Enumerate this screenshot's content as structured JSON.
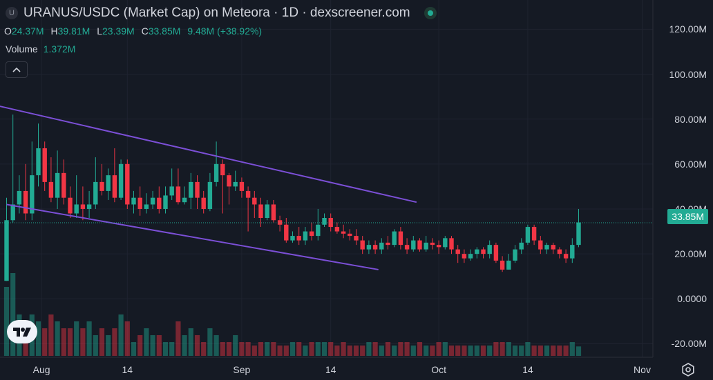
{
  "header": {
    "symbol_badge": "U",
    "title": "URANUS/USDC (Market Cap) on Meteora · 1D · dexscreener.com"
  },
  "ohlc": {
    "o_label": "O",
    "o_value": "24.37M",
    "h_label": "H",
    "h_value": "39.81M",
    "l_label": "L",
    "l_value": "23.39M",
    "c_label": "C",
    "c_value": "33.85M",
    "change": "9.48M (+38.92%)"
  },
  "volume": {
    "label": "Volume",
    "value": "1.372M"
  },
  "current_price_label": "33.85M",
  "icons": {
    "collapse": "chevron-up-icon",
    "logo": "tradingview-logo",
    "settings": "gear-icon",
    "live": "live-status-icon"
  },
  "colors": {
    "background": "#151a24",
    "up": "#22ab94",
    "down": "#f23645",
    "trendline": "#7b4fd6"
  },
  "chart_data": {
    "type": "candlestick",
    "interval": "1D",
    "y_ticks": [
      "120.00M",
      "100.00M",
      "80.00M",
      "60.00M",
      "40.00M",
      "20.00M",
      "0.0000",
      "-20.00M"
    ],
    "y_tick_values": [
      120,
      100,
      80,
      60,
      40,
      20,
      0,
      -20
    ],
    "x_ticks": [
      "Aug",
      "14",
      "Sep",
      "14",
      "Oct",
      "14",
      "Nov"
    ],
    "ylim": [
      -26,
      133
    ],
    "unit": "M",
    "candles_ohlc": [
      [
        8,
        35,
        45,
        8
      ],
      [
        35,
        42,
        82,
        34
      ],
      [
        42,
        48,
        55,
        38
      ],
      [
        48,
        38,
        60,
        35
      ],
      [
        38,
        55,
        70,
        35
      ],
      [
        55,
        67,
        78,
        50
      ],
      [
        67,
        52,
        70,
        48
      ],
      [
        52,
        45,
        63,
        43
      ],
      [
        45,
        56,
        66,
        40
      ],
      [
        56,
        45,
        62,
        42
      ],
      [
        45,
        38,
        50,
        36
      ],
      [
        38,
        42,
        55,
        36
      ],
      [
        42,
        40,
        50,
        35
      ],
      [
        40,
        42,
        48,
        36
      ],
      [
        42,
        52,
        63,
        40
      ],
      [
        52,
        48,
        60,
        46
      ],
      [
        48,
        55,
        58,
        44
      ],
      [
        55,
        45,
        67,
        43
      ],
      [
        45,
        60,
        62,
        44
      ],
      [
        60,
        42,
        62,
        40
      ],
      [
        42,
        45,
        48,
        38
      ],
      [
        45,
        40,
        50,
        37
      ],
      [
        40,
        42,
        47,
        38
      ],
      [
        42,
        45,
        48,
        40
      ],
      [
        45,
        40,
        50,
        38
      ],
      [
        40,
        46,
        50,
        38
      ],
      [
        46,
        50,
        58,
        44
      ],
      [
        50,
        43,
        58,
        42
      ],
      [
        43,
        45,
        50,
        42
      ],
      [
        45,
        52,
        56,
        40
      ],
      [
        52,
        45,
        55,
        40
      ],
      [
        45,
        40,
        48,
        38
      ],
      [
        40,
        52,
        56,
        39
      ],
      [
        52,
        60,
        70,
        50
      ],
      [
        60,
        55,
        62,
        38
      ],
      [
        55,
        50,
        56,
        42
      ],
      [
        50,
        52,
        57,
        48
      ],
      [
        52,
        48,
        54,
        45
      ],
      [
        48,
        45,
        50,
        30
      ],
      [
        45,
        42,
        48,
        36
      ],
      [
        42,
        36,
        45,
        32
      ],
      [
        36,
        42,
        44,
        35
      ],
      [
        42,
        35,
        44,
        34
      ],
      [
        35,
        33,
        37,
        30
      ],
      [
        33,
        26,
        36,
        25
      ],
      [
        26,
        28,
        30,
        25
      ],
      [
        28,
        26,
        32,
        24
      ],
      [
        26,
        30,
        32,
        24
      ],
      [
        30,
        28,
        34,
        26
      ],
      [
        28,
        33,
        40,
        26
      ],
      [
        33,
        36,
        38,
        32
      ],
      [
        36,
        32,
        38,
        30
      ],
      [
        32,
        30,
        34,
        29
      ],
      [
        30,
        29,
        33,
        27
      ],
      [
        29,
        28,
        31,
        26
      ],
      [
        28,
        26,
        31,
        24
      ],
      [
        26,
        22,
        28,
        20
      ],
      [
        22,
        24,
        26,
        20
      ],
      [
        24,
        22,
        26,
        20
      ],
      [
        22,
        25,
        27,
        20
      ],
      [
        25,
        24,
        28,
        22
      ],
      [
        24,
        30,
        31,
        23
      ],
      [
        30,
        24,
        32,
        22
      ],
      [
        24,
        22,
        27,
        20
      ],
      [
        22,
        26,
        28,
        21
      ],
      [
        26,
        22,
        27,
        21
      ],
      [
        22,
        25,
        28,
        21
      ],
      [
        25,
        24,
        27,
        22
      ],
      [
        24,
        23,
        26,
        20
      ],
      [
        23,
        27,
        28,
        22
      ],
      [
        27,
        22,
        28,
        20
      ],
      [
        22,
        20,
        24,
        16
      ],
      [
        20,
        18,
        22,
        16
      ],
      [
        18,
        20,
        22,
        17
      ],
      [
        20,
        22,
        23,
        18
      ],
      [
        22,
        20,
        23,
        18
      ],
      [
        20,
        24,
        26,
        18
      ],
      [
        24,
        17,
        25,
        16
      ],
      [
        17,
        13,
        19,
        12
      ],
      [
        13,
        17,
        20,
        13
      ],
      [
        17,
        22,
        24,
        16
      ],
      [
        22,
        25,
        27,
        20
      ],
      [
        25,
        32,
        33,
        24
      ],
      [
        32,
        26,
        33,
        24
      ],
      [
        26,
        22,
        28,
        20
      ],
      [
        22,
        24,
        25,
        20
      ],
      [
        24,
        22,
        25,
        20
      ],
      [
        22,
        20,
        23,
        18
      ],
      [
        20,
        18,
        22,
        16
      ],
      [
        18,
        24,
        27,
        16
      ],
      [
        24,
        34,
        40,
        23
      ]
    ],
    "volumes": [
      10,
      12,
      6,
      5,
      6,
      5,
      4,
      6,
      5,
      4,
      4,
      5,
      4,
      5,
      3,
      4,
      3,
      4,
      6,
      5,
      2,
      3,
      4,
      3,
      3,
      2,
      2,
      5,
      3,
      4,
      3,
      2,
      4,
      3,
      2,
      2,
      3,
      2,
      2,
      1.5,
      2,
      2,
      2,
      1.5,
      1.5,
      2,
      2,
      1.5,
      2,
      2,
      2,
      2,
      1.5,
      2,
      1.5,
      1.5,
      1.5,
      2,
      2,
      1.5,
      2,
      1.5,
      2,
      2,
      1.5,
      2,
      1.5,
      1.5,
      2,
      2,
      1.5,
      1.5,
      1.5,
      1.5,
      1.5,
      1.5,
      1.5,
      2,
      2,
      2,
      1.5,
      1.5,
      2,
      1.5,
      1.5,
      1.5,
      1.5,
      1.5,
      1.5,
      2,
      1.37
    ],
    "volume_max": 14,
    "trendlines": [
      {
        "from": [
          -1.5,
          86
        ],
        "to": [
          64.5,
          43
        ]
      },
      {
        "from": [
          0,
          42
        ],
        "to": [
          58.5,
          13
        ]
      }
    ],
    "last_close": 33.85
  }
}
